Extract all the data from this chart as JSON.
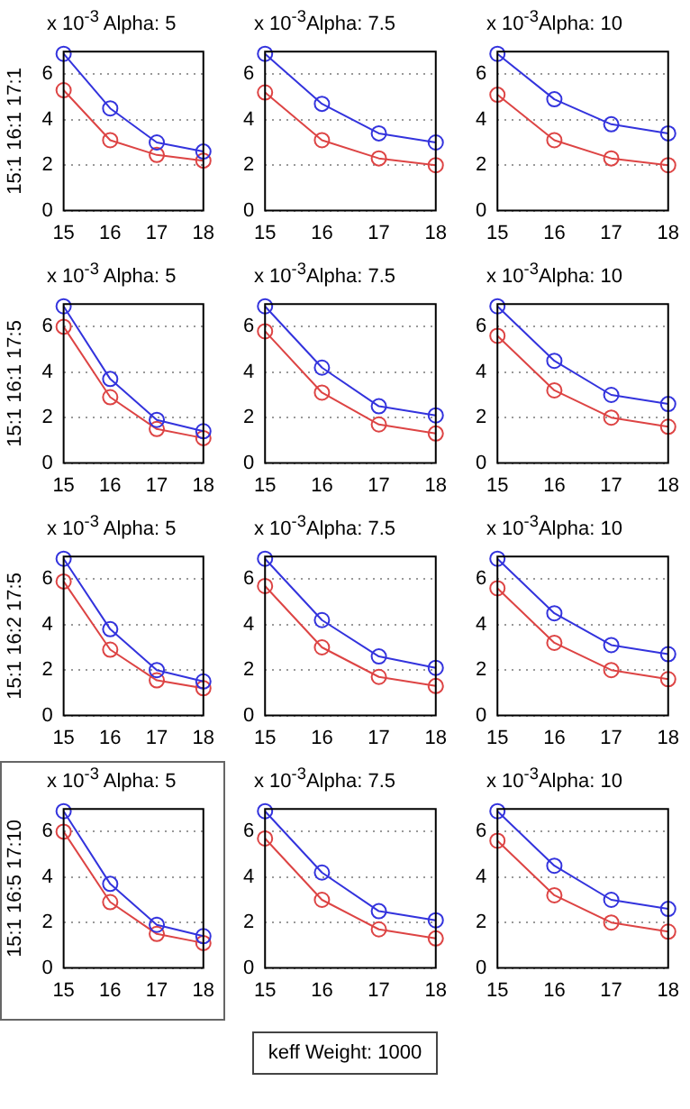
{
  "chart_data": [
    {
      "type": "line",
      "title": "x 10$^{-3}$ Alpha: 5",
      "ylabel": "15:1 16:1 17:1",
      "x": [
        15,
        16,
        17,
        18
      ],
      "xlim": [
        15,
        18
      ],
      "xticks": [
        15,
        16,
        17,
        18
      ],
      "ylim": [
        0,
        7
      ],
      "yticks": [
        0,
        2,
        4,
        6
      ],
      "grid": "y",
      "marker": "circle",
      "legend": false,
      "series": [
        {
          "color": "#3333dd",
          "values": [
            6.9,
            4.5,
            3.0,
            2.6
          ]
        },
        {
          "color": "#dd4444",
          "values": [
            5.3,
            3.1,
            2.45,
            2.2
          ]
        }
      ]
    },
    {
      "type": "line",
      "title": "x 10$^{-3}$Alpha: 7.5",
      "x": [
        15,
        16,
        17,
        18
      ],
      "xlim": [
        15,
        18
      ],
      "xticks": [
        15,
        16,
        17,
        18
      ],
      "ylim": [
        0,
        7
      ],
      "yticks": [
        0,
        2,
        4,
        6
      ],
      "grid": "y",
      "marker": "circle",
      "legend": false,
      "series": [
        {
          "color": "#3333dd",
          "values": [
            6.9,
            4.7,
            3.4,
            3.0
          ]
        },
        {
          "color": "#dd4444",
          "values": [
            5.2,
            3.1,
            2.3,
            2.0
          ]
        }
      ]
    },
    {
      "type": "line",
      "title": "x 10$^{-3}$Alpha: 10",
      "x": [
        15,
        16,
        17,
        18
      ],
      "xlim": [
        15,
        18
      ],
      "xticks": [
        15,
        16,
        17,
        18
      ],
      "ylim": [
        0,
        7
      ],
      "yticks": [
        0,
        2,
        4,
        6
      ],
      "grid": "y",
      "marker": "circle",
      "legend": false,
      "series": [
        {
          "color": "#3333dd",
          "values": [
            6.9,
            4.9,
            3.8,
            3.4
          ]
        },
        {
          "color": "#dd4444",
          "values": [
            5.1,
            3.1,
            2.3,
            2.0
          ]
        }
      ]
    },
    {
      "type": "line",
      "title": "x 10$^{-3}$ Alpha: 5",
      "ylabel": "15:1 16:1 17:5",
      "x": [
        15,
        16,
        17,
        18
      ],
      "xlim": [
        15,
        18
      ],
      "xticks": [
        15,
        16,
        17,
        18
      ],
      "ylim": [
        0,
        7
      ],
      "yticks": [
        0,
        2,
        4,
        6
      ],
      "grid": "y",
      "marker": "circle",
      "legend": false,
      "series": [
        {
          "color": "#3333dd",
          "values": [
            6.9,
            3.7,
            1.9,
            1.4
          ]
        },
        {
          "color": "#dd4444",
          "values": [
            6.0,
            2.9,
            1.5,
            1.1
          ]
        }
      ]
    },
    {
      "type": "line",
      "title": "x 10$^{-3}$Alpha: 7.5",
      "x": [
        15,
        16,
        17,
        18
      ],
      "xlim": [
        15,
        18
      ],
      "xticks": [
        15,
        16,
        17,
        18
      ],
      "ylim": [
        0,
        7
      ],
      "yticks": [
        0,
        2,
        4,
        6
      ],
      "grid": "y",
      "marker": "circle",
      "legend": false,
      "series": [
        {
          "color": "#3333dd",
          "values": [
            6.9,
            4.2,
            2.5,
            2.1
          ]
        },
        {
          "color": "#dd4444",
          "values": [
            5.8,
            3.1,
            1.7,
            1.3
          ]
        }
      ]
    },
    {
      "type": "line",
      "title": "x 10$^{-3}$Alpha: 10",
      "x": [
        15,
        16,
        17,
        18
      ],
      "xlim": [
        15,
        18
      ],
      "xticks": [
        15,
        16,
        17,
        18
      ],
      "ylim": [
        0,
        7
      ],
      "yticks": [
        0,
        2,
        4,
        6
      ],
      "grid": "y",
      "marker": "circle",
      "legend": false,
      "series": [
        {
          "color": "#3333dd",
          "values": [
            6.9,
            4.5,
            3.0,
            2.6
          ]
        },
        {
          "color": "#dd4444",
          "values": [
            5.6,
            3.2,
            2.0,
            1.6
          ]
        }
      ]
    },
    {
      "type": "line",
      "title": "x 10$^{-3}$ Alpha: 5",
      "ylabel": "15:1 16:2 17:5",
      "x": [
        15,
        16,
        17,
        18
      ],
      "xlim": [
        15,
        18
      ],
      "xticks": [
        15,
        16,
        17,
        18
      ],
      "ylim": [
        0,
        7
      ],
      "yticks": [
        0,
        2,
        4,
        6
      ],
      "grid": "y",
      "marker": "circle",
      "legend": false,
      "series": [
        {
          "color": "#3333dd",
          "values": [
            6.9,
            3.8,
            2.0,
            1.5
          ]
        },
        {
          "color": "#dd4444",
          "values": [
            5.9,
            2.9,
            1.55,
            1.2
          ]
        }
      ]
    },
    {
      "type": "line",
      "title": "x 10$^{-3}$Alpha: 7.5",
      "x": [
        15,
        16,
        17,
        18
      ],
      "xlim": [
        15,
        18
      ],
      "xticks": [
        15,
        16,
        17,
        18
      ],
      "ylim": [
        0,
        7
      ],
      "yticks": [
        0,
        2,
        4,
        6
      ],
      "grid": "y",
      "marker": "circle",
      "legend": false,
      "series": [
        {
          "color": "#3333dd",
          "values": [
            6.9,
            4.2,
            2.6,
            2.1
          ]
        },
        {
          "color": "#dd4444",
          "values": [
            5.7,
            3.0,
            1.7,
            1.3
          ]
        }
      ]
    },
    {
      "type": "line",
      "title": "x 10$^{-3}$Alpha: 10",
      "x": [
        15,
        16,
        17,
        18
      ],
      "xlim": [
        15,
        18
      ],
      "xticks": [
        15,
        16,
        17,
        18
      ],
      "ylim": [
        0,
        7
      ],
      "yticks": [
        0,
        2,
        4,
        6
      ],
      "grid": "y",
      "marker": "circle",
      "legend": false,
      "series": [
        {
          "color": "#3333dd",
          "values": [
            6.9,
            4.5,
            3.1,
            2.7
          ]
        },
        {
          "color": "#dd4444",
          "values": [
            5.6,
            3.2,
            2.0,
            1.6
          ]
        }
      ]
    },
    {
      "type": "line",
      "title": "x 10$^{-3}$ Alpha: 5",
      "ylabel": "15:1 16:5 17:10",
      "x": [
        15,
        16,
        17,
        18
      ],
      "xlim": [
        15,
        18
      ],
      "xticks": [
        15,
        16,
        17,
        18
      ],
      "ylim": [
        0,
        7
      ],
      "yticks": [
        0,
        2,
        4,
        6
      ],
      "grid": "y",
      "marker": "circle",
      "legend": false,
      "series": [
        {
          "color": "#3333dd",
          "values": [
            6.9,
            3.7,
            1.9,
            1.4
          ]
        },
        {
          "color": "#dd4444",
          "values": [
            6.0,
            2.9,
            1.5,
            1.1
          ]
        }
      ]
    },
    {
      "type": "line",
      "title": "x 10$^{-3}$Alpha: 7.5",
      "x": [
        15,
        16,
        17,
        18
      ],
      "xlim": [
        15,
        18
      ],
      "xticks": [
        15,
        16,
        17,
        18
      ],
      "ylim": [
        0,
        7
      ],
      "yticks": [
        0,
        2,
        4,
        6
      ],
      "grid": "y",
      "marker": "circle",
      "legend": false,
      "series": [
        {
          "color": "#3333dd",
          "values": [
            6.9,
            4.2,
            2.5,
            2.1
          ]
        },
        {
          "color": "#dd4444",
          "values": [
            5.7,
            3.0,
            1.7,
            1.3
          ]
        }
      ]
    },
    {
      "type": "line",
      "title": "x 10$^{-3}$Alpha: 10",
      "x": [
        15,
        16,
        17,
        18
      ],
      "xlim": [
        15,
        18
      ],
      "xticks": [
        15,
        16,
        17,
        18
      ],
      "ylim": [
        0,
        7
      ],
      "yticks": [
        0,
        2,
        4,
        6
      ],
      "grid": "y",
      "marker": "circle",
      "legend": false,
      "series": [
        {
          "color": "#3333dd",
          "values": [
            6.9,
            4.5,
            3.0,
            2.6
          ]
        },
        {
          "color": "#dd4444",
          "values": [
            5.6,
            3.2,
            2.0,
            1.6
          ]
        }
      ]
    },
    {
      "type": "other",
      "annotations": [
        "keff Weight: 1000"
      ]
    }
  ]
}
